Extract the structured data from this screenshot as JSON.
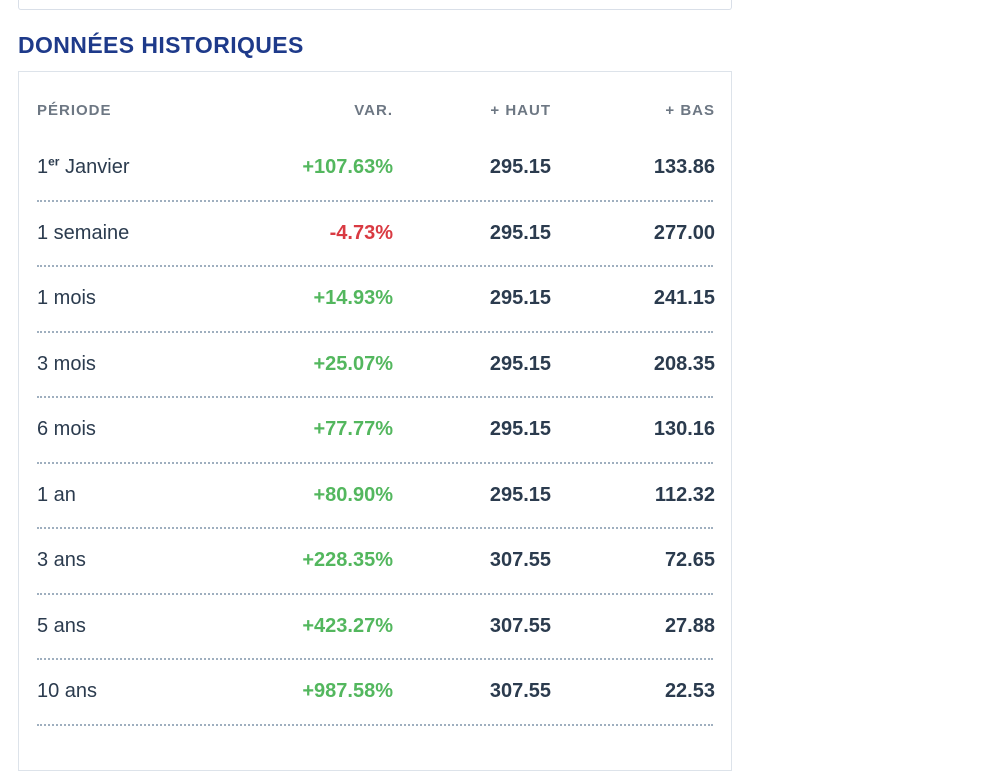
{
  "page": {
    "section_title": "DONNÉES HISTORIQUES"
  },
  "colors": {
    "title_blue": "#1e3a8a",
    "text_navy": "#2b3b4e",
    "header_gray": "#6d7783",
    "positive_green": "#53b75e",
    "negative_red": "#d93a42",
    "card_border": "#dde3ea",
    "dotted_separator": "#9fafbf"
  },
  "table": {
    "columns": [
      {
        "key": "period",
        "label": "PÉRIODE"
      },
      {
        "key": "var",
        "label": "VAR."
      },
      {
        "key": "haut",
        "label": "+ HAUT"
      },
      {
        "key": "bas",
        "label": "+ BAS"
      }
    ],
    "rows": [
      {
        "period": "1",
        "period_sup": "er",
        "period_rest": " Janvier",
        "var": "+107.63%",
        "trend": "up",
        "haut": "295.15",
        "bas": "133.86"
      },
      {
        "period": "1 semaine",
        "var": "-4.73%",
        "trend": "down",
        "haut": "295.15",
        "bas": "277.00"
      },
      {
        "period": "1 mois",
        "var": "+14.93%",
        "trend": "up",
        "haut": "295.15",
        "bas": "241.15"
      },
      {
        "period": "3 mois",
        "var": "+25.07%",
        "trend": "up",
        "haut": "295.15",
        "bas": "208.35"
      },
      {
        "period": "6 mois",
        "var": "+77.77%",
        "trend": "up",
        "haut": "295.15",
        "bas": "130.16"
      },
      {
        "period": "1 an",
        "var": "+80.90%",
        "trend": "up",
        "haut": "295.15",
        "bas": "112.32"
      },
      {
        "period": "3 ans",
        "var": "+228.35%",
        "trend": "up",
        "haut": "307.55",
        "bas": "72.65"
      },
      {
        "period": "5 ans",
        "var": "+423.27%",
        "trend": "up",
        "haut": "307.55",
        "bas": "27.88"
      },
      {
        "period": "10 ans",
        "var": "+987.58%",
        "trend": "up",
        "haut": "307.55",
        "bas": "22.53"
      }
    ]
  }
}
